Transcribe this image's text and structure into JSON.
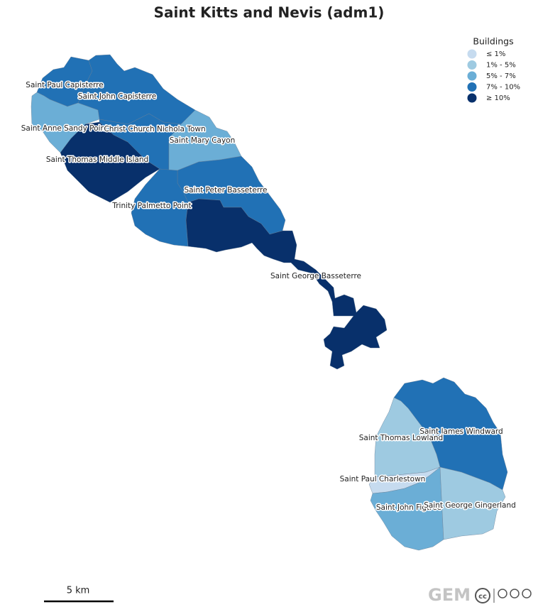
{
  "title": "Saint Kitts and Nevis (adm1)",
  "legend": {
    "title": "Buildings",
    "items": [
      {
        "label": "≤ 1%",
        "color": "#c6dbef"
      },
      {
        "label": "1% - 5%",
        "color": "#9ecae1"
      },
      {
        "label": "5% - 7%",
        "color": "#6baed6"
      },
      {
        "label": "7% - 10%",
        "color": "#2171b5"
      },
      {
        "label": "≥ 10%",
        "color": "#08306b"
      }
    ]
  },
  "regions": [
    {
      "label": "Saint Paul Capisterre",
      "color": "#2171b5"
    },
    {
      "label": "Saint John Capisterre",
      "color": "#2171b5"
    },
    {
      "label": "Saint Anne Sandy Point",
      "color": "#6baed6"
    },
    {
      "label": "Christ Church Nichola Town",
      "color": "#2171b5"
    },
    {
      "label": "Saint Mary Cayon",
      "color": "#6baed6"
    },
    {
      "label": "Saint Thomas Middle Island",
      "color": "#08306b"
    },
    {
      "label": "Saint Peter Basseterre",
      "color": "#2171b5"
    },
    {
      "label": "Trinity Palmetto Point",
      "color": "#2171b5"
    },
    {
      "label": "Saint George Basseterre",
      "color": "#08306b"
    },
    {
      "label": "Saint James Windward",
      "color": "#2171b5"
    },
    {
      "label": "Saint Thomas Lowland",
      "color": "#9ecae1"
    },
    {
      "label": "Saint Paul Charlestown",
      "color": "#c6dbef"
    },
    {
      "label": "Saint John Figtree",
      "color": "#6baed6"
    },
    {
      "label": "Saint George Gingerland",
      "color": "#9ecae1"
    }
  ],
  "scale_bar": "5 km",
  "logo": "GEM",
  "license": "cc"
}
